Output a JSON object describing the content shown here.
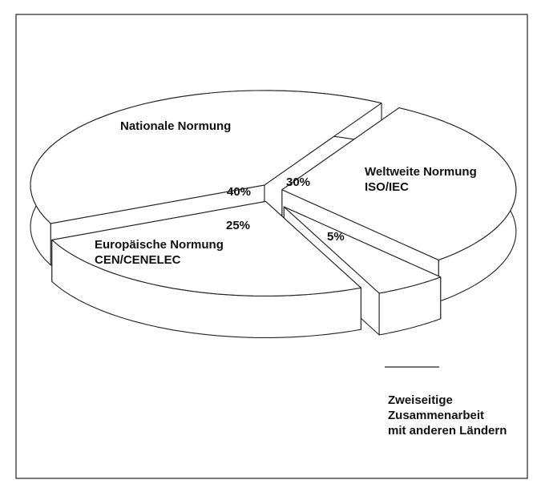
{
  "chart_data": {
    "type": "pie",
    "categories": [
      "Weltweite Normung\nISO/IEC",
      "Zweiseitige\nZusammenarbeit\nmit anderen Ländern",
      "Europäische Normung\nCEN/CENELEC",
      "Nationale Normung"
    ],
    "values": [
      30,
      5,
      25,
      40
    ],
    "value_labels": [
      "30%",
      "5%",
      "25%",
      "40%"
    ],
    "color": "#ffffff"
  }
}
